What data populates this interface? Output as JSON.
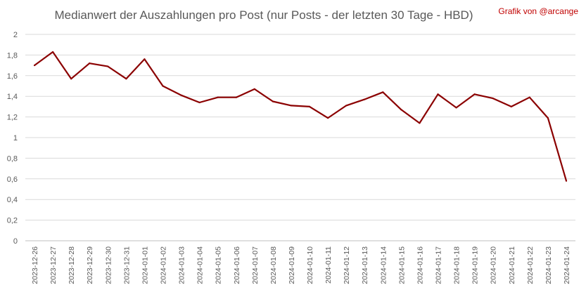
{
  "title": "Medianwert der Auszahlungen pro Post (nur Posts - der letzten 30 Tage - HBD)",
  "credit": "Grafik von @arcange",
  "colors": {
    "line": "#8b0000",
    "credit": "#c00000",
    "text": "#595959",
    "grid": "#d9d9d9"
  },
  "chart_data": {
    "type": "line",
    "title": "Medianwert der Auszahlungen pro Post (nur Posts - der letzten 30 Tage - HBD)",
    "xlabel": "",
    "ylabel": "",
    "ylim": [
      0,
      2
    ],
    "yticks": [
      "0",
      "0,2",
      "0,4",
      "0,6",
      "0,8",
      "1",
      "1,2",
      "1,4",
      "1,6",
      "1,8",
      "2"
    ],
    "grid": true,
    "legend": "none",
    "categories": [
      "2023-12-26",
      "2023-12-27",
      "2023-12-28",
      "2023-12-29",
      "2023-12-30",
      "2023-12-31",
      "2024-01-01",
      "2024-01-02",
      "2024-01-03",
      "2024-01-04",
      "2024-01-05",
      "2024-01-06",
      "2024-01-07",
      "2024-01-08",
      "2024-01-09",
      "2024-01-10",
      "2024-01-11",
      "2024-01-12",
      "2024-01-13",
      "2024-01-14",
      "2024-01-15",
      "2024-01-16",
      "2024-01-17",
      "2024-01-18",
      "2024-01-19",
      "2024-01-20",
      "2024-01-21",
      "2024-01-22",
      "2024-01-23",
      "2024-01-24"
    ],
    "values": [
      1.7,
      1.83,
      1.57,
      1.72,
      1.69,
      1.57,
      1.76,
      1.5,
      1.41,
      1.34,
      1.39,
      1.39,
      1.47,
      1.35,
      1.31,
      1.3,
      1.19,
      1.31,
      1.37,
      1.44,
      1.27,
      1.14,
      1.42,
      1.29,
      1.42,
      1.38,
      1.3,
      1.39,
      1.19,
      0.58
    ]
  }
}
